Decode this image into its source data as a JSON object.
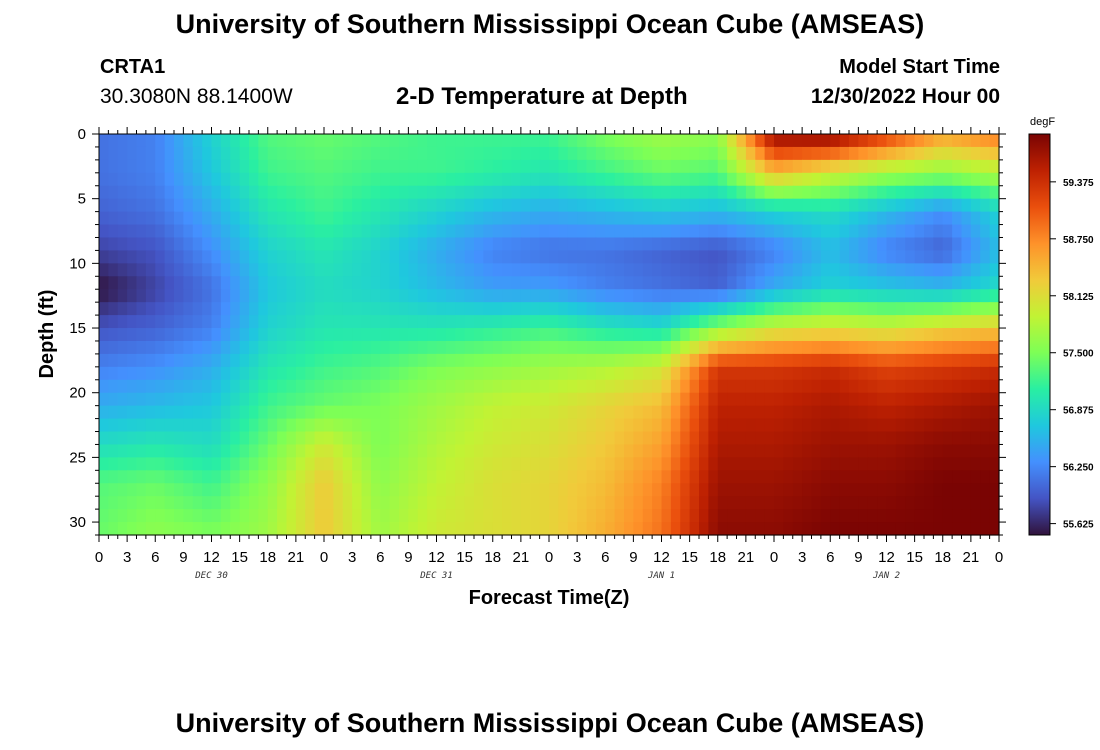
{
  "header": {
    "title": "University of Southern Mississippi Ocean Cube (AMSEAS)",
    "station": "CRTA1",
    "coordinates": "30.3080N  88.1400W",
    "subtitle": "2-D Temperature at Depth",
    "model_start_label": "Model Start Time",
    "model_start_value": "12/30/2022 Hour 00"
  },
  "footer": {
    "title": "University of Southern Mississippi Ocean Cube (AMSEAS)"
  },
  "chart_data": {
    "type": "heatmap",
    "title": "2-D Temperature at Depth",
    "xlabel": "Forecast Time(Z)",
    "ylabel": "Depth (ft)",
    "x_range_hours": [
      0,
      96
    ],
    "x_tick_labels": [
      "0",
      "3",
      "6",
      "9",
      "12",
      "15",
      "18",
      "21",
      "0",
      "3",
      "6",
      "9",
      "12",
      "15",
      "18",
      "21",
      "0",
      "3",
      "6",
      "9",
      "12",
      "15",
      "18",
      "21",
      "0",
      "3",
      "6",
      "9",
      "12",
      "15",
      "18",
      "21",
      "0"
    ],
    "day_labels": [
      {
        "label": "DEC 30",
        "hour": 12
      },
      {
        "label": "DEC 31",
        "hour": 36
      },
      {
        "label": "JAN 1",
        "hour": 60
      },
      {
        "label": "JAN 2",
        "hour": 84
      }
    ],
    "y_range": [
      0,
      31
    ],
    "y_ticks": [
      0,
      5,
      10,
      15,
      20,
      25,
      30
    ],
    "colorbar": {
      "unit": "degF",
      "range": [
        55.5,
        59.9
      ],
      "tick_values": [
        55.625,
        56.25,
        56.875,
        57.5,
        58.125,
        58.75,
        59.375
      ],
      "tick_labels": [
        "55.625",
        "56.250",
        "56.875",
        "57.500",
        "58.125",
        "58.750",
        "59.375"
      ],
      "colormap": [
        "#30123b",
        "#4454c4",
        "#4490fe",
        "#1fc8de",
        "#29efa2",
        "#7dff56",
        "#c1f334",
        "#f1ca3a",
        "#fe922a",
        "#ea4f0d",
        "#be2102",
        "#7a0403"
      ]
    },
    "grid_hours": [
      0,
      6,
      12,
      18,
      24,
      30,
      36,
      42,
      48,
      54,
      60,
      66,
      72,
      78,
      84,
      90,
      96
    ],
    "grid_depths": [
      0,
      3,
      6,
      9,
      12,
      15,
      18,
      21,
      24,
      27,
      31
    ],
    "values": [
      [
        56.1,
        56.2,
        56.8,
        57.3,
        57.4,
        57.3,
        57.2,
        57.2,
        57.2,
        57.5,
        57.7,
        57.6,
        59.8,
        59.9,
        59.3,
        58.6,
        58.9
      ],
      [
        56.1,
        56.2,
        56.7,
        57.2,
        57.3,
        57.2,
        57.2,
        57.1,
        57.0,
        57.2,
        57.4,
        57.3,
        58.4,
        58.0,
        57.7,
        57.6,
        57.8
      ],
      [
        56.0,
        56.1,
        56.5,
        57.0,
        57.2,
        57.0,
        56.8,
        56.6,
        56.5,
        56.6,
        56.7,
        56.6,
        56.8,
        56.9,
        56.6,
        56.3,
        56.8
      ],
      [
        55.8,
        55.9,
        56.3,
        56.8,
        57.0,
        56.8,
        56.5,
        56.2,
        56.1,
        56.1,
        56.0,
        55.9,
        56.2,
        56.6,
        56.2,
        56.0,
        56.6
      ],
      [
        55.5,
        55.8,
        56.1,
        56.7,
        56.9,
        56.8,
        56.6,
        56.4,
        56.4,
        56.2,
        56.1,
        56.0,
        56.5,
        56.8,
        56.7,
        56.6,
        56.9
      ],
      [
        55.9,
        56.0,
        56.2,
        56.8,
        57.0,
        57.0,
        57.0,
        57.1,
        57.2,
        57.0,
        56.9,
        57.6,
        58.0,
        58.1,
        58.0,
        58.2,
        58.3
      ],
      [
        56.2,
        56.3,
        56.5,
        57.0,
        57.2,
        57.3,
        57.5,
        57.6,
        57.7,
        57.8,
        58.0,
        59.3,
        59.3,
        59.4,
        59.2,
        59.3,
        59.4
      ],
      [
        56.5,
        56.6,
        56.7,
        57.2,
        57.4,
        57.5,
        57.7,
        57.9,
        58.0,
        58.2,
        58.4,
        59.5,
        59.5,
        59.6,
        59.5,
        59.6,
        59.7
      ],
      [
        56.9,
        57.0,
        56.9,
        57.4,
        58.0,
        57.5,
        57.8,
        58.0,
        58.1,
        58.3,
        58.6,
        59.6,
        59.6,
        59.7,
        59.7,
        59.8,
        59.8
      ],
      [
        57.3,
        57.4,
        57.2,
        57.6,
        58.3,
        57.6,
        57.9,
        58.1,
        58.2,
        58.4,
        58.8,
        59.7,
        59.7,
        59.8,
        59.8,
        59.9,
        59.9
      ],
      [
        57.4,
        57.6,
        57.5,
        57.7,
        58.3,
        57.7,
        58.0,
        58.1,
        58.2,
        58.5,
        58.9,
        59.8,
        59.8,
        59.9,
        59.9,
        59.9,
        59.9
      ]
    ]
  }
}
